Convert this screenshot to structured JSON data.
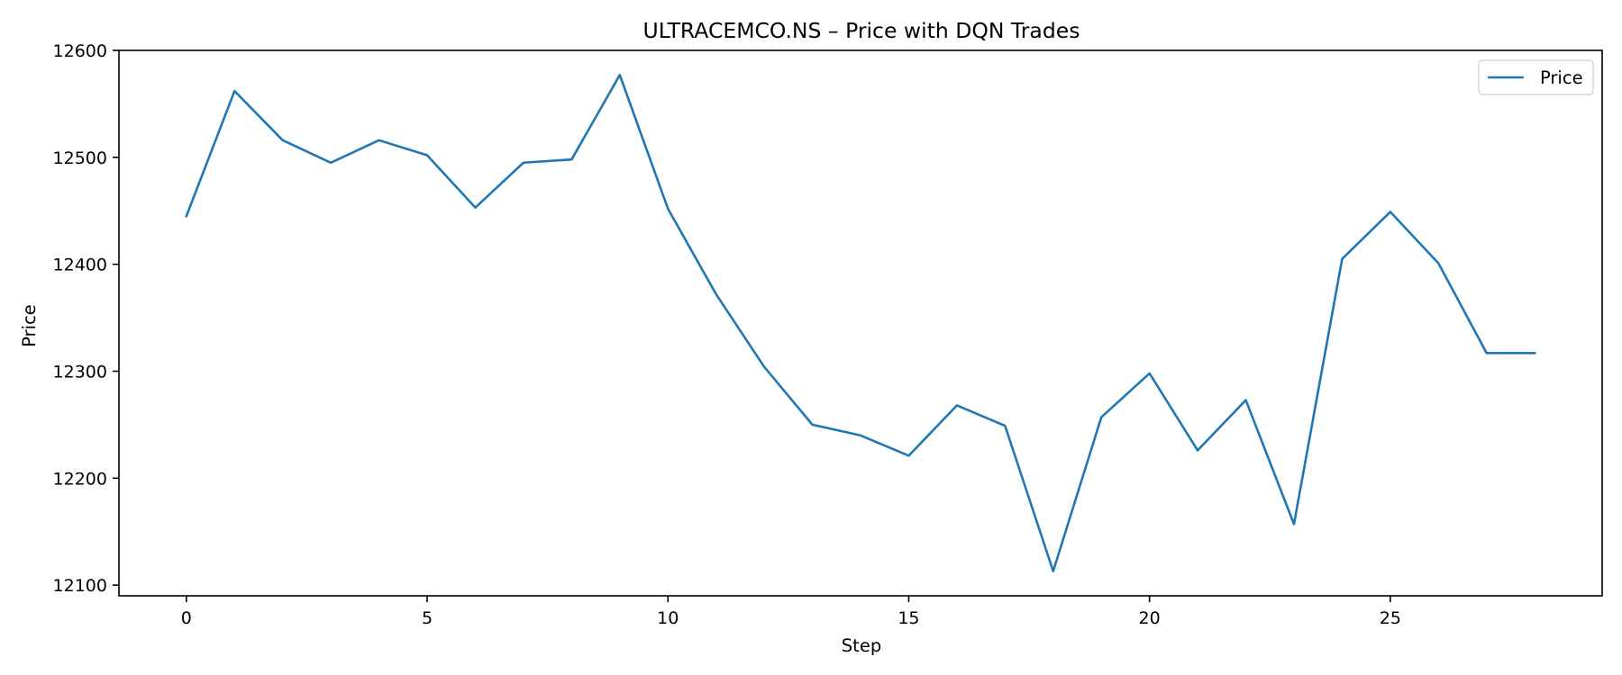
{
  "chart_data": {
    "type": "line",
    "title": "ULTRACEMCO.NS – Price with DQN Trades",
    "xlabel": "Step",
    "ylabel": "Price",
    "xlim": [
      -1.4,
      29.4
    ],
    "ylim": [
      12090,
      12600
    ],
    "xticks": [
      0,
      5,
      10,
      15,
      20,
      25
    ],
    "yticks": [
      12100,
      12200,
      12300,
      12400,
      12500,
      12600
    ],
    "grid": false,
    "legend_position": "top-right",
    "series": [
      {
        "name": "Price",
        "color": "#1f77b4",
        "x": [
          0,
          1,
          2,
          3,
          4,
          5,
          6,
          7,
          8,
          9,
          10,
          11,
          12,
          13,
          14,
          15,
          16,
          17,
          18,
          19,
          20,
          21,
          22,
          23,
          24,
          25,
          26,
          27,
          28
        ],
        "y": [
          12445,
          12562,
          12516,
          12495,
          12516,
          12502,
          12453,
          12495,
          12498,
          12577,
          12452,
          12372,
          12304,
          12250,
          12240,
          12221,
          12268,
          12249,
          12113,
          12257,
          12298,
          12226,
          12273,
          12157,
          12405,
          12449,
          12401,
          12317,
          12317
        ]
      }
    ]
  }
}
